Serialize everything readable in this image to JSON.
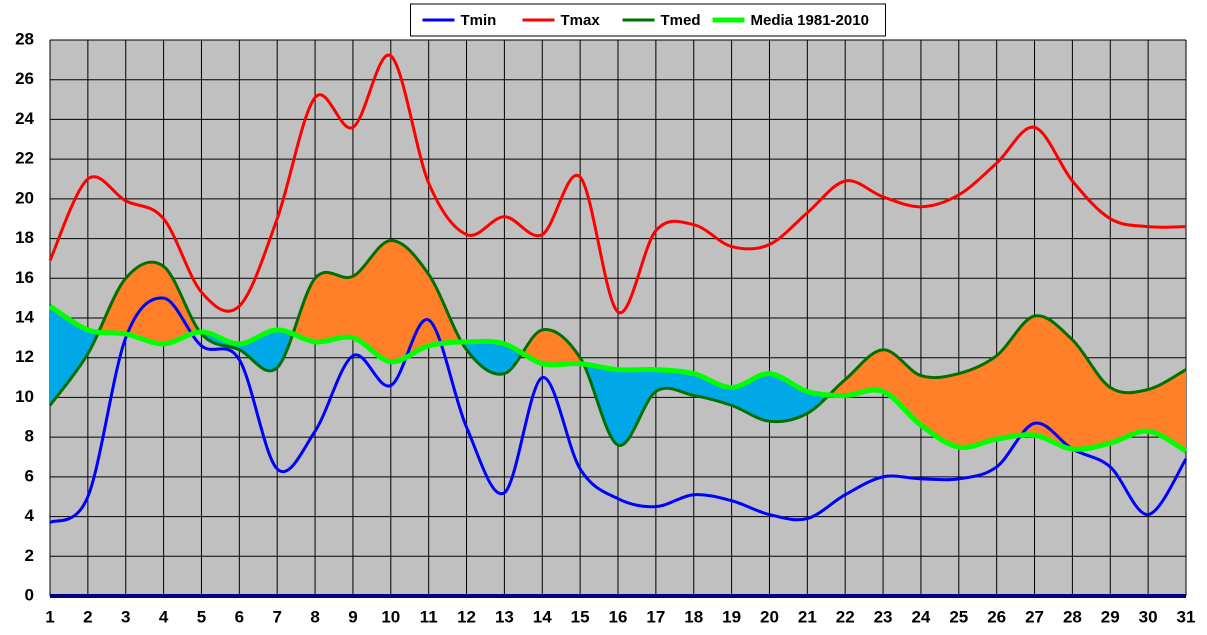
{
  "chart_data": {
    "type": "line",
    "x": [
      1,
      2,
      3,
      4,
      5,
      6,
      7,
      8,
      9,
      10,
      11,
      12,
      13,
      14,
      15,
      16,
      17,
      18,
      19,
      20,
      21,
      22,
      23,
      24,
      25,
      26,
      27,
      28,
      29,
      30,
      31
    ],
    "xlim": [
      1,
      31
    ],
    "xticks": [
      1,
      2,
      3,
      4,
      5,
      6,
      7,
      8,
      9,
      10,
      11,
      12,
      13,
      14,
      15,
      16,
      17,
      18,
      19,
      20,
      21,
      22,
      23,
      24,
      25,
      26,
      27,
      28,
      29,
      30,
      31
    ],
    "ylim": [
      0,
      28
    ],
    "yticks": [
      0,
      2,
      4,
      6,
      8,
      10,
      12,
      14,
      16,
      18,
      20,
      22,
      24,
      26,
      28
    ],
    "grid": true,
    "legend": "top",
    "background": "#c0c0c0",
    "fill_above": "#ff8028",
    "fill_below": "#00a8e8",
    "series": [
      {
        "name": "Tmin",
        "color": "#0000ff",
        "values": [
          3.7,
          5.0,
          13.0,
          15.0,
          12.6,
          11.9,
          6.4,
          8.3,
          12.1,
          10.6,
          13.9,
          8.5,
          5.2,
          11.0,
          6.4,
          4.9,
          4.5,
          5.1,
          4.8,
          4.1,
          3.9,
          5.1,
          6.0,
          5.9,
          5.9,
          6.5,
          8.7,
          7.4,
          6.5,
          4.1,
          6.9
        ]
      },
      {
        "name": "Tmax",
        "color": "#ff0000",
        "values": [
          16.9,
          21.0,
          19.9,
          19.0,
          15.3,
          14.6,
          19.0,
          25.1,
          23.6,
          27.2,
          20.8,
          18.2,
          19.1,
          18.2,
          21.1,
          14.3,
          18.4,
          18.7,
          17.6,
          17.7,
          19.3,
          20.9,
          20.1,
          19.6,
          20.2,
          21.8,
          23.6,
          20.9,
          19.0,
          18.6,
          18.6
        ]
      },
      {
        "name": "Tmed",
        "color": "#007000",
        "values": [
          9.6,
          12.2,
          16.0,
          16.6,
          13.2,
          12.4,
          11.5,
          16.0,
          16.1,
          17.9,
          16.2,
          12.4,
          11.2,
          13.4,
          12.0,
          7.6,
          10.3,
          10.1,
          9.6,
          8.8,
          9.2,
          10.9,
          12.4,
          11.1,
          11.2,
          12.1,
          14.1,
          12.9,
          10.5,
          10.4,
          11.4
        ]
      },
      {
        "name": "Media 1981-2010",
        "color": "#00ff00",
        "values": [
          14.6,
          13.4,
          13.2,
          12.7,
          13.3,
          12.7,
          13.4,
          12.8,
          13.0,
          11.8,
          12.6,
          12.8,
          12.7,
          11.7,
          11.7,
          11.4,
          11.4,
          11.2,
          10.5,
          11.2,
          10.3,
          10.1,
          10.3,
          8.6,
          7.5,
          7.9,
          8.1,
          7.4,
          7.7,
          8.3,
          7.3
        ]
      }
    ]
  }
}
